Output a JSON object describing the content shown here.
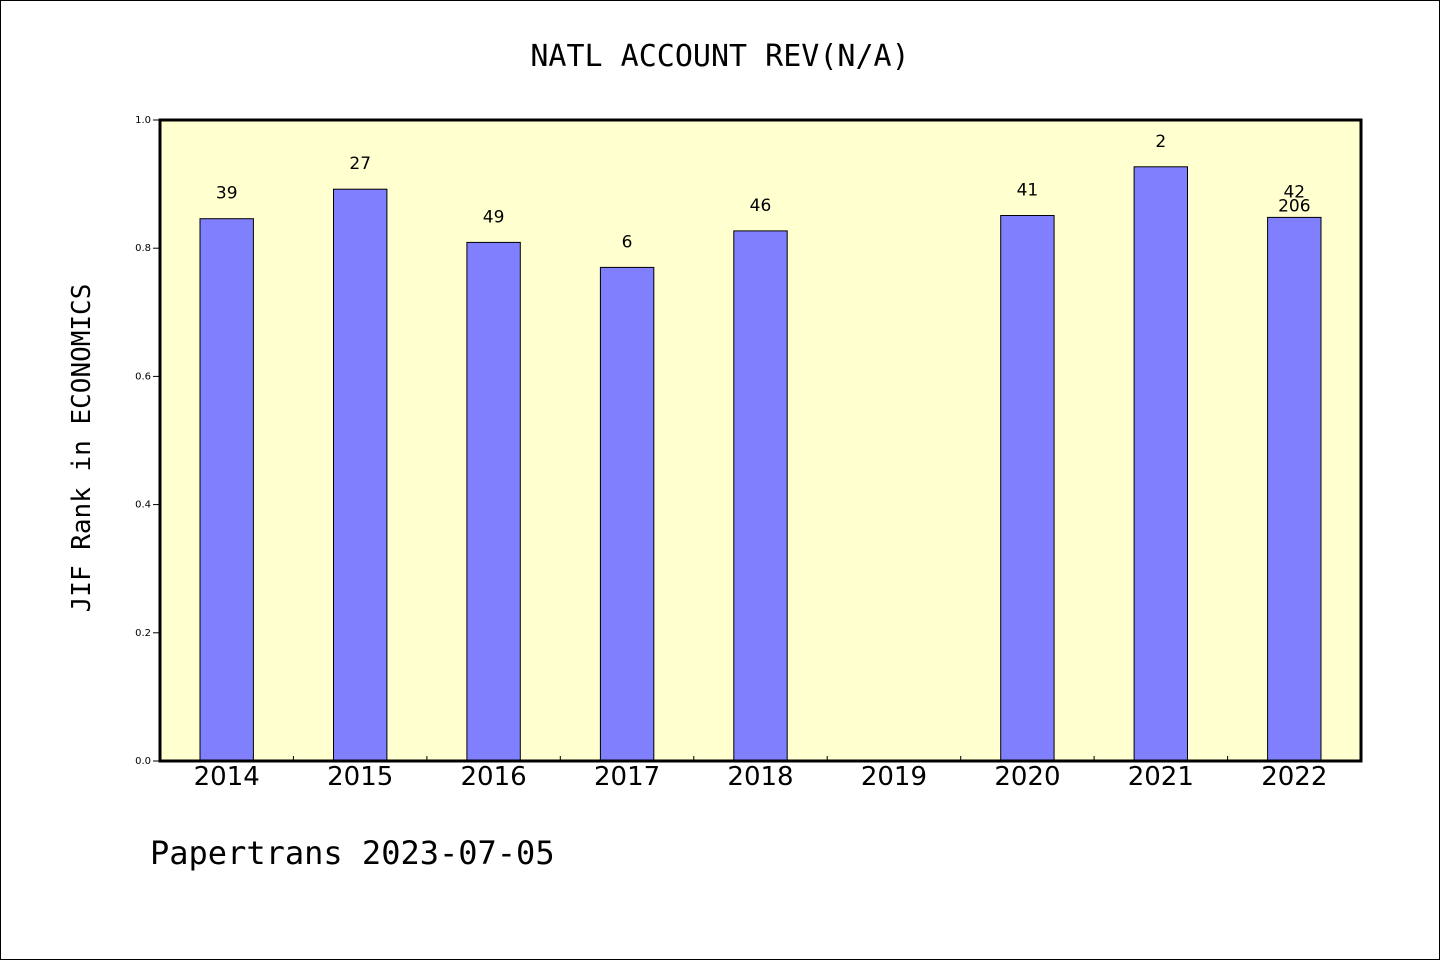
{
  "chart_data": {
    "type": "bar",
    "title": "NATL ACCOUNT REV(N/A)",
    "ylabel": "JIF Rank in ECONOMICS",
    "xlabel": "",
    "ylim": [
      0,
      1.0
    ],
    "yticks": [
      "0.0",
      "0.2",
      "0.4",
      "0.6",
      "0.8",
      "1.0"
    ],
    "categories": [
      "2014",
      "2015",
      "2016",
      "2017",
      "2018",
      "2019",
      "2020",
      "2021",
      "2022"
    ],
    "values": [
      0.846,
      0.892,
      0.809,
      0.77,
      0.827,
      null,
      0.851,
      0.927,
      0.848
    ],
    "bar_labels": [
      "39",
      "27",
      "49",
      "6",
      "46",
      "",
      "41",
      "2",
      "42"
    ],
    "bar_labels_secondary": [
      "",
      "",
      "",
      "",
      "",
      "",
      "",
      "",
      "206"
    ],
    "bar_color": "#8080ff",
    "plot_background": "#ffffd0",
    "grid": false,
    "legend": "none"
  },
  "footer": {
    "credit": "Papertrans 2023-07-05"
  }
}
